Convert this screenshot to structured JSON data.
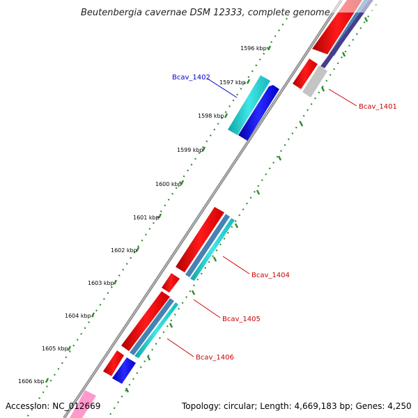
{
  "title": "Beutenbergia cavernae DSM 12333, complete genome",
  "accession": "Accession: NC_012669",
  "summary": "Topology: circular; Length: 4,669,183 bp; Genes: 4,250",
  "kbp_labels": [
    "1596 kbp",
    "1597 kbp",
    "1598 kbp",
    "1599 kbp",
    "1600 kbp",
    "1601 kbp",
    "1602 kbp",
    "1603 kbp",
    "1604 kbp",
    "1605 kbp",
    "1606 kbp"
  ],
  "gene_labels": {
    "bcav_1401": "Bcav_1401",
    "bcav_1402": "Bcav_1402",
    "bcav_1404": "Bcav_1404",
    "bcav_1405": "Bcav_1405",
    "bcav_1406": "Bcav_1406"
  },
  "colors": {
    "backbone": "#8a8a8a",
    "ticks": "#2f8a2f",
    "cds": "#ff0000",
    "cds_blue": "#0000ee",
    "cds_cyan": "#20c8c8",
    "cds_steel": "#4682b4",
    "cds_navy": "#483d8b",
    "cds_gray": "#c0c0c0",
    "cds_pink": "#ff99cc",
    "label_red": "#cc0000",
    "label_blue": "#0000cc"
  }
}
